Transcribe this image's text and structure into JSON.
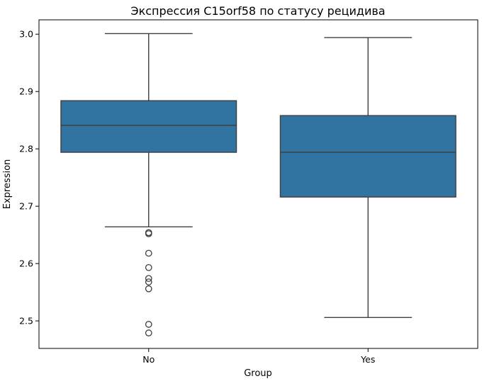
{
  "chart_data": {
    "type": "box",
    "title": "Экспрессия C15orf58 по статусу рецидива",
    "xlabel": "Group",
    "ylabel": "Expression",
    "ylim": [
      2.452,
      3.025
    ],
    "yticks": [
      2.5,
      2.6,
      2.7,
      2.8,
      2.9,
      3.0
    ],
    "ytick_labels": [
      "2.5",
      "2.6",
      "2.7",
      "2.8",
      "2.9",
      "3.0"
    ],
    "grid": false,
    "box_color": "#3274a1",
    "line_color": "#3f3f3f",
    "categories": [
      "No",
      "Yes"
    ],
    "series": [
      {
        "category": "No",
        "whisker_low": 2.664,
        "q1": 2.794,
        "median": 2.841,
        "q3": 2.884,
        "whisker_high": 3.001,
        "outliers": [
          2.654,
          2.652,
          2.618,
          2.593,
          2.574,
          2.568,
          2.556,
          2.494,
          2.479
        ]
      },
      {
        "category": "Yes",
        "whisker_low": 2.506,
        "q1": 2.716,
        "median": 2.794,
        "q3": 2.858,
        "whisker_high": 2.994,
        "outliers": []
      }
    ]
  }
}
